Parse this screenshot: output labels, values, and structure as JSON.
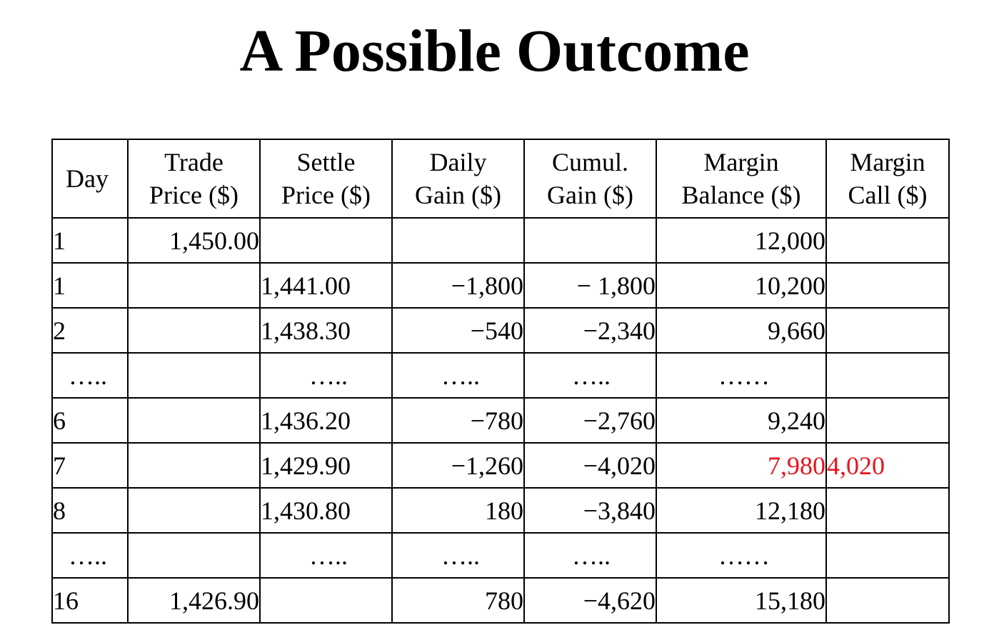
{
  "title": "A Possible Outcome",
  "table": {
    "headers": [
      {
        "line1": "Day",
        "line2": ""
      },
      {
        "line1": "Trade",
        "line2": "Price ($)"
      },
      {
        "line1": "Settle",
        "line2": "Price ($)"
      },
      {
        "line1": "Daily",
        "line2": "Gain ($)"
      },
      {
        "line1": "Cumul.",
        "line2": "Gain ($)"
      },
      {
        "line1": "Margin",
        "line2": "Balance ($)"
      },
      {
        "line1": "Margin",
        "line2": "Call ($)"
      }
    ],
    "rows": [
      {
        "day": "1",
        "trade_price": "1,450.00",
        "settle_price": "",
        "daily_gain": "",
        "cumul_gain": "",
        "margin_balance": "12,000",
        "margin_call": ""
      },
      {
        "day": "1",
        "trade_price": "",
        "settle_price": "1,441.00",
        "daily_gain": "−1,800",
        "cumul_gain": "− 1,800",
        "margin_balance": "10,200",
        "margin_call": ""
      },
      {
        "day": "2",
        "trade_price": "",
        "settle_price": "1,438.30",
        "daily_gain": "−540",
        "cumul_gain": "−2,340",
        "margin_balance": "9,660",
        "margin_call": ""
      },
      {
        "day": "…..",
        "trade_price": "",
        "settle_price": "…..",
        "daily_gain": "…..",
        "cumul_gain": "…..",
        "margin_balance": "……",
        "margin_call": ""
      },
      {
        "day": "6",
        "trade_price": "",
        "settle_price": "1,436.20",
        "daily_gain": "−780",
        "cumul_gain": "−2,760",
        "margin_balance": "9,240",
        "margin_call": ""
      },
      {
        "day": "7",
        "trade_price": "",
        "settle_price": "1,429.90",
        "daily_gain": "−1,260",
        "cumul_gain": "−4,020",
        "margin_balance": "7,980",
        "margin_call": "4,020"
      },
      {
        "day": "8",
        "trade_price": "",
        "settle_price": "1,430.80",
        "daily_gain": "180",
        "cumul_gain": "−3,840",
        "margin_balance": "12,180",
        "margin_call": ""
      },
      {
        "day": "…..",
        "trade_price": "",
        "settle_price": "…..",
        "daily_gain": "…..",
        "cumul_gain": "…..",
        "margin_balance": "……",
        "margin_call": ""
      },
      {
        "day": "16",
        "trade_price": "1,426.90",
        "settle_price": "",
        "daily_gain": "780",
        "cumul_gain": "−4,620",
        "margin_balance": "15,180",
        "margin_call": ""
      }
    ]
  },
  "colors": {
    "text": "#000000",
    "highlight": "#e8121c",
    "background": "#ffffff"
  }
}
